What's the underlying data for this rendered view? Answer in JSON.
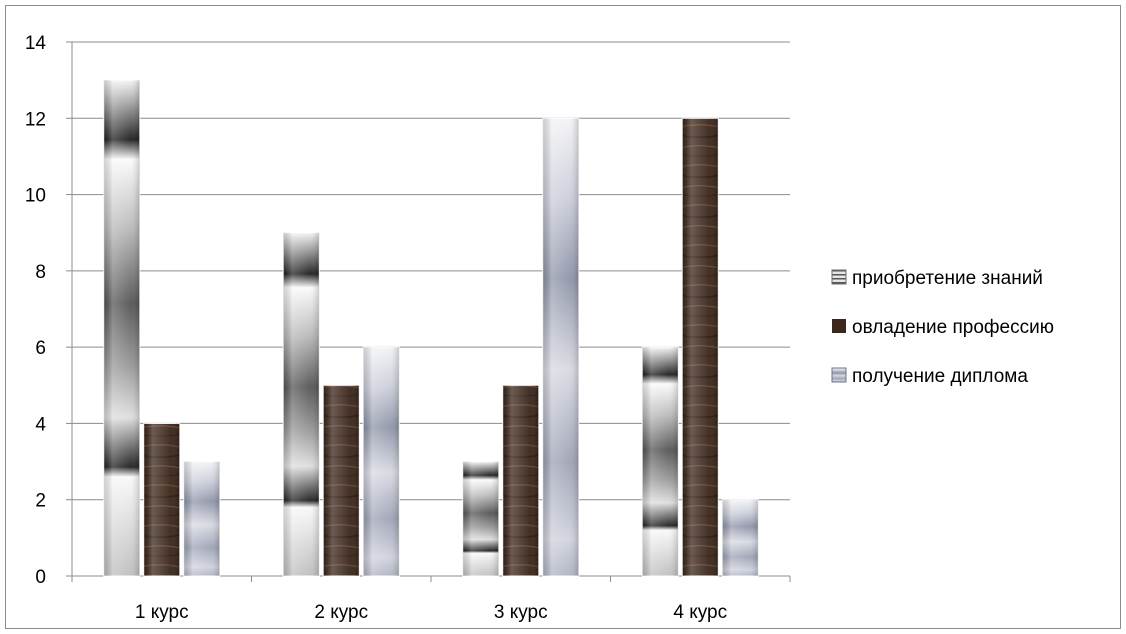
{
  "chart_data": {
    "type": "bar",
    "categories": [
      "1 курс",
      "2 курс",
      "3 курс",
      "4 курс"
    ],
    "series": [
      {
        "name": "приобретение знаний",
        "values": [
          13,
          9,
          3,
          6
        ],
        "pattern": "silver-gloss",
        "legend_color": "#6e6e6e"
      },
      {
        "name": "овладение профессию",
        "values": [
          4,
          5,
          5,
          12
        ],
        "pattern": "dark-wood",
        "legend_color": "#3b271c"
      },
      {
        "name": "получение диплома",
        "values": [
          3,
          6,
          12,
          2
        ],
        "pattern": "blue-gray-gloss",
        "legend_color": "#9ea3b4"
      }
    ],
    "y_ticks": [
      "0",
      "2",
      "4",
      "6",
      "8",
      "10",
      "12",
      "14"
    ],
    "ylim": [
      0,
      14
    ],
    "grid": true,
    "legend_position": "right",
    "title": "",
    "xlabel": "",
    "ylabel": ""
  }
}
